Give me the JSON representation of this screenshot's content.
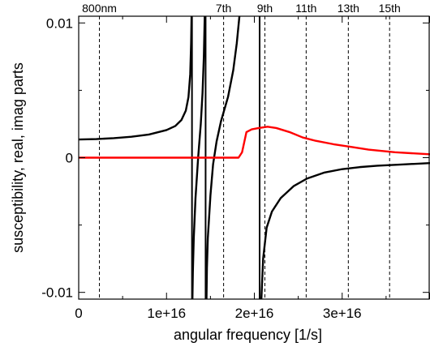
{
  "chart_data": {
    "type": "line",
    "xlabel": "angular frequency [1/s]",
    "ylabel": "susceptibility, real, imag parts",
    "xlim": [
      0,
      4e+16
    ],
    "ylim": [
      -0.0105,
      0.0105
    ],
    "grid": false,
    "x_ticks": [
      {
        "value": 0,
        "label": "0"
      },
      {
        "value": 1e+16,
        "label": "1e+16"
      },
      {
        "value": 2e+16,
        "label": "2e+16"
      },
      {
        "value": 3e+16,
        "label": "3e+16"
      }
    ],
    "y_ticks": [
      {
        "value": 0.01,
        "label": "0.01"
      },
      {
        "value": 0,
        "label": "0"
      },
      {
        "value": -0.01,
        "label": "-0.01"
      }
    ],
    "vertical_markers": [
      {
        "x": 2360000000000000.0,
        "label": "800nm",
        "style": "dashed"
      },
      {
        "x": 1.65e+16,
        "label": "7th",
        "style": "dashed"
      },
      {
        "x": 2.12e+16,
        "label": "9th",
        "style": "dashed"
      },
      {
        "x": 2.59e+16,
        "label": "11th",
        "style": "dashed"
      },
      {
        "x": 3.07e+16,
        "label": "13th",
        "style": "dashed"
      },
      {
        "x": 3.54e+16,
        "label": "15th",
        "style": "dashed"
      },
      {
        "x": 1.29e+16,
        "label": "",
        "style": "solid"
      },
      {
        "x": 1.445e+16,
        "label": "",
        "style": "solid"
      },
      {
        "x": 2.06e+16,
        "label": "",
        "style": "solid"
      }
    ],
    "series": [
      {
        "color": "#000000",
        "segments": [
          [
            [
              0,
              0.00135
            ],
            [
              2000000000000000.0,
              0.00138
            ],
            [
              4000000000000000.0,
              0.00145
            ],
            [
              6000000000000000.0,
              0.00155
            ],
            [
              8000000000000000.0,
              0.00172
            ],
            [
              1e+16,
              0.00205
            ],
            [
              1.1e+16,
              0.00235
            ],
            [
              1.17e+16,
              0.0028
            ],
            [
              1.22e+16,
              0.0035
            ],
            [
              1.25e+16,
              0.0045
            ],
            [
              1.27e+16,
              0.0062
            ],
            [
              1.28e+16,
              0.0085
            ],
            [
              1.285e+16,
              0.0105
            ]
          ],
          [
            [
              1.295e+16,
              -0.0105
            ],
            [
              1.3e+16,
              -0.0085
            ],
            [
              1.31e+16,
              -0.006
            ],
            [
              1.33e+16,
              -0.003
            ],
            [
              1.36e+16,
              0.0
            ],
            [
              1.39e+16,
              0.0025
            ],
            [
              1.41e+16,
              0.0048
            ],
            [
              1.425e+16,
              0.0075
            ],
            [
              1.435e+16,
              0.0105
            ]
          ],
          [
            [
              1.455e+16,
              -0.0105
            ],
            [
              1.46e+16,
              -0.0082
            ],
            [
              1.47e+16,
              -0.006
            ],
            [
              1.5e+16,
              -0.0028
            ],
            [
              1.53e+16,
              -0.0005
            ],
            [
              1.57e+16,
              0.0012
            ],
            [
              1.62e+16,
              0.0027
            ],
            [
              1.7e+16,
              0.0045
            ],
            [
              1.76e+16,
              0.0065
            ],
            [
              1.8e+16,
              0.0085
            ],
            [
              1.83e+16,
              0.0105
            ]
          ],
          [
            [
              2.08e+16,
              -0.0105
            ],
            [
              2.1e+16,
              -0.0075
            ],
            [
              2.14e+16,
              -0.0052
            ],
            [
              2.2e+16,
              -0.004
            ],
            [
              2.3e+16,
              -0.003
            ],
            [
              2.45e+16,
              -0.0021
            ],
            [
              2.6e+16,
              -0.00155
            ],
            [
              2.8e+16,
              -0.0011
            ],
            [
              3e+16,
              -0.00085
            ],
            [
              3.2e+16,
              -0.0007
            ],
            [
              3.4e+16,
              -0.0006
            ],
            [
              3.7e+16,
              -0.0005
            ],
            [
              4e+16,
              -0.0004
            ]
          ]
        ]
      },
      {
        "color": "#ff0000",
        "segments": [
          [
            [
              0,
              0
            ],
            [
              1e+16,
              0
            ],
            [
              1.5e+16,
              0
            ],
            [
              1.82e+16,
              0
            ],
            [
              1.86e+16,
              0.0004
            ],
            [
              1.91e+16,
              0.0019
            ],
            [
              1.97e+16,
              0.0021
            ],
            [
              2.05e+16,
              0.0022
            ],
            [
              2.15e+16,
              0.0023
            ],
            [
              2.25e+16,
              0.0022
            ],
            [
              2.4e+16,
              0.0019
            ],
            [
              2.55e+16,
              0.0015
            ],
            [
              2.7e+16,
              0.00125
            ],
            [
              2.9e+16,
              0.001
            ],
            [
              3.1e+16,
              0.0008
            ],
            [
              3.3e+16,
              0.0006
            ],
            [
              3.6e+16,
              0.0004
            ],
            [
              4e+16,
              0.00025
            ]
          ]
        ]
      }
    ]
  }
}
